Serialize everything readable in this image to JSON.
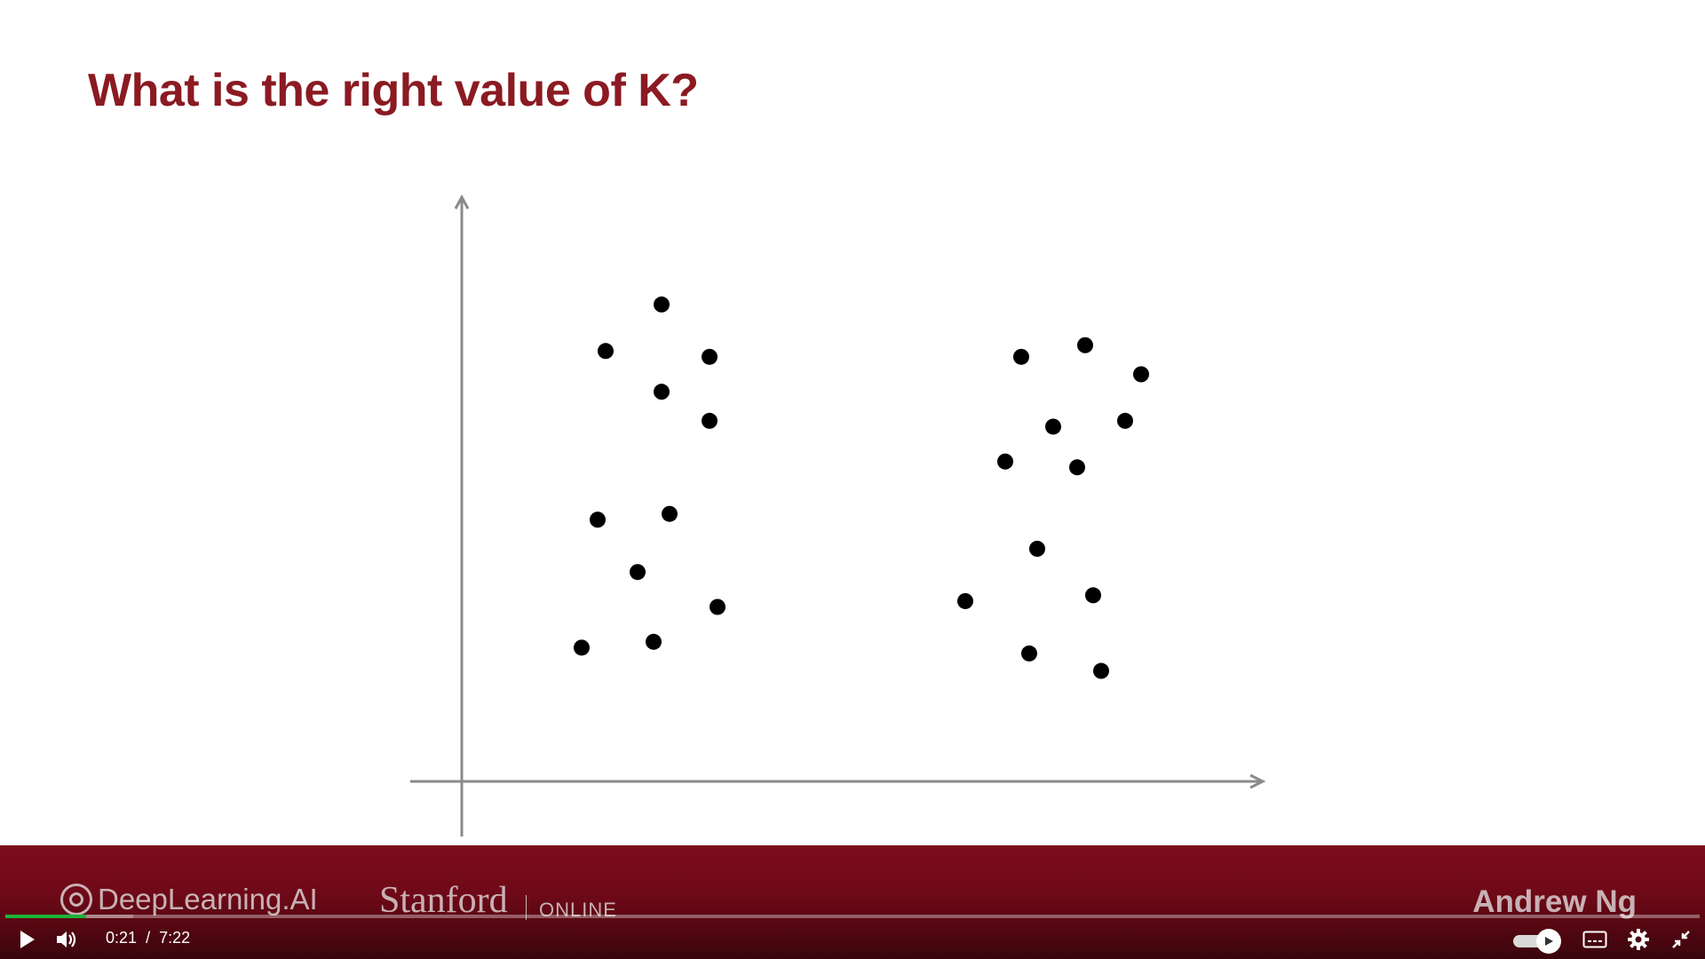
{
  "slide": {
    "title": "What is the right value of K?"
  },
  "chart_data": {
    "type": "scatter",
    "title": "What is the right value of K?",
    "xlabel": "",
    "ylabel": "",
    "axes": "arrows-only, no ticks",
    "xlim": [
      0,
      100
    ],
    "ylim": [
      0,
      100
    ],
    "grid": false,
    "points": [
      {
        "x": 25,
        "y": 82
      },
      {
        "x": 18,
        "y": 74
      },
      {
        "x": 31,
        "y": 73
      },
      {
        "x": 25,
        "y": 67
      },
      {
        "x": 31,
        "y": 62
      },
      {
        "x": 17,
        "y": 45
      },
      {
        "x": 26,
        "y": 46
      },
      {
        "x": 22,
        "y": 36
      },
      {
        "x": 32,
        "y": 30
      },
      {
        "x": 15,
        "y": 23
      },
      {
        "x": 24,
        "y": 24
      },
      {
        "x": 70,
        "y": 73
      },
      {
        "x": 78,
        "y": 75
      },
      {
        "x": 85,
        "y": 70
      },
      {
        "x": 74,
        "y": 61
      },
      {
        "x": 83,
        "y": 62
      },
      {
        "x": 68,
        "y": 55
      },
      {
        "x": 77,
        "y": 54
      },
      {
        "x": 72,
        "y": 40
      },
      {
        "x": 63,
        "y": 31
      },
      {
        "x": 79,
        "y": 32
      },
      {
        "x": 71,
        "y": 22
      },
      {
        "x": 80,
        "y": 19
      }
    ],
    "colors": {
      "points": "#000000",
      "axes": "#8a8a8a"
    }
  },
  "footer": {
    "brand_dlai": "DeepLearning.AI",
    "brand_stanford": "Stanford",
    "brand_online": "ONLINE",
    "author": "Andrew Ng"
  },
  "player": {
    "current_time": "0:21",
    "separator": "/",
    "duration": "7:22",
    "progress_fraction": 0.0475,
    "buffered_fraction": 0.028,
    "icons": [
      "play-icon",
      "volume-icon",
      "autoplay-toggle",
      "captions-icon",
      "settings-icon",
      "exit-fullscreen-icon"
    ],
    "colors": {
      "played": "#1db33a",
      "band": "#7e0c1c",
      "title": "#8b1a22"
    }
  }
}
